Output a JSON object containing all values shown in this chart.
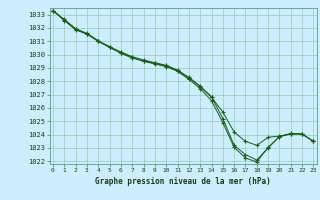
{
  "title": "Graphe pression niveau de la mer (hPa)",
  "bg_color": "#cceeff",
  "grid_color": "#99ccbb",
  "line_color": "#1a5c1a",
  "xlim": [
    -0.3,
    23.3
  ],
  "ylim": [
    1021.8,
    1033.5
  ],
  "yticks": [
    1022,
    1023,
    1024,
    1025,
    1026,
    1027,
    1028,
    1029,
    1030,
    1031,
    1032,
    1033
  ],
  "xticks": [
    0,
    1,
    2,
    3,
    4,
    5,
    6,
    7,
    8,
    9,
    10,
    11,
    12,
    13,
    14,
    15,
    16,
    17,
    18,
    19,
    20,
    21,
    22,
    23
  ],
  "series1": [
    [
      0,
      1033.3
    ],
    [
      1,
      1032.6
    ],
    [
      2,
      1031.85
    ],
    [
      3,
      1031.55
    ],
    [
      4,
      1031.0
    ],
    [
      5,
      1030.55
    ],
    [
      6,
      1030.15
    ],
    [
      7,
      1029.8
    ],
    [
      8,
      1029.55
    ],
    [
      9,
      1029.35
    ],
    [
      10,
      1029.15
    ],
    [
      11,
      1028.8
    ],
    [
      12,
      1028.25
    ],
    [
      13,
      1027.6
    ],
    [
      14,
      1026.8
    ],
    [
      15,
      1025.7
    ],
    [
      16,
      1024.2
    ],
    [
      17,
      1023.5
    ],
    [
      18,
      1023.2
    ],
    [
      19,
      1023.8
    ],
    [
      20,
      1023.9
    ],
    [
      21,
      1024.05
    ],
    [
      22,
      1024.05
    ],
    [
      23,
      1023.5
    ]
  ],
  "series2": [
    [
      0,
      1033.3
    ],
    [
      1,
      1032.65
    ],
    [
      2,
      1031.95
    ],
    [
      3,
      1031.6
    ],
    [
      4,
      1031.05
    ],
    [
      5,
      1030.6
    ],
    [
      6,
      1030.2
    ],
    [
      7,
      1029.85
    ],
    [
      8,
      1029.6
    ],
    [
      9,
      1029.4
    ],
    [
      10,
      1029.2
    ],
    [
      11,
      1028.85
    ],
    [
      12,
      1028.3
    ],
    [
      13,
      1027.65
    ],
    [
      14,
      1026.85
    ],
    [
      15,
      1025.2
    ],
    [
      16,
      1023.2
    ],
    [
      17,
      1022.5
    ],
    [
      18,
      1022.1
    ],
    [
      19,
      1023.0
    ],
    [
      20,
      1023.85
    ],
    [
      21,
      1024.1
    ],
    [
      22,
      1024.05
    ],
    [
      23,
      1023.5
    ]
  ],
  "series3": [
    [
      0,
      1033.3
    ],
    [
      1,
      1032.55
    ],
    [
      2,
      1031.9
    ],
    [
      3,
      1031.55
    ],
    [
      4,
      1031.0
    ],
    [
      5,
      1030.55
    ],
    [
      6,
      1030.1
    ],
    [
      7,
      1029.75
    ],
    [
      8,
      1029.5
    ],
    [
      9,
      1029.3
    ],
    [
      10,
      1029.1
    ],
    [
      11,
      1028.75
    ],
    [
      12,
      1028.15
    ],
    [
      13,
      1027.45
    ],
    [
      14,
      1026.55
    ],
    [
      15,
      1024.9
    ],
    [
      16,
      1023.05
    ],
    [
      17,
      1022.25
    ],
    [
      18,
      1021.95
    ],
    [
      19,
      1023.05
    ],
    [
      20,
      1023.85
    ],
    [
      21,
      1024.05
    ],
    [
      22,
      1024.05
    ],
    [
      23,
      1023.5
    ]
  ]
}
